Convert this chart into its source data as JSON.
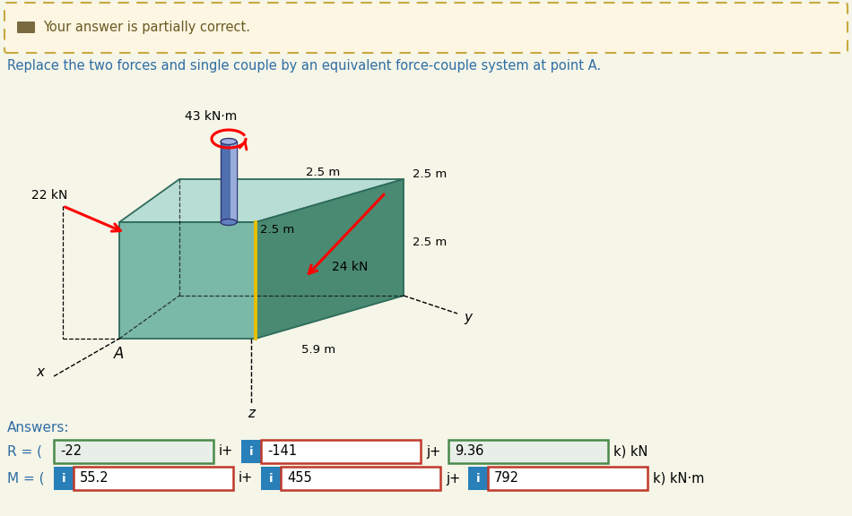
{
  "banner_text": "Your answer is partially correct.",
  "banner_bg": "#fdf6e3",
  "banner_border": "#c8a940",
  "question_text": "Replace the two forces and single couple by an equivalent force-couple system at point A.",
  "question_color": "#2e6da4",
  "answers_label": "Answers:",
  "answers_color": "#2e6da4",
  "R_label": "R = (",
  "R_fields": [
    "-22",
    "-141",
    "9.36"
  ],
  "R_separators": [
    "i+",
    "j+",
    "k) kN"
  ],
  "M_label": "M = (",
  "M_fields": [
    "55.2",
    "455",
    "792"
  ],
  "M_separators": [
    "i+",
    "j+",
    "k) kN·m"
  ],
  "R_field_colors": [
    "#e8efe8",
    "#ffffff",
    "#e8efe8"
  ],
  "M_field_colors": [
    "#ffffff",
    "#ffffff",
    "#ffffff"
  ],
  "R_border_colors": [
    "#4a8a4a",
    "#c0392b",
    "#4a8a4a"
  ],
  "M_border_colors": [
    "#c0392b",
    "#c0392b",
    "#c0392b"
  ],
  "R_has_info": [
    false,
    true,
    false
  ],
  "M_has_info": [
    true,
    true,
    true
  ],
  "info_btn_color": "#2980b9",
  "label_color": "#2e6da4",
  "bg_color": "#f5f5e8",
  "box_top_color": "#b8ddd5",
  "box_front_color": "#7ab8a8",
  "box_right_color": "#4a8a72",
  "box_edge_color": "#2d6b5a",
  "cyl_body_color": "#6080c0",
  "cyl_top_color": "#8898d8",
  "cyl_edge_color": "#303870"
}
